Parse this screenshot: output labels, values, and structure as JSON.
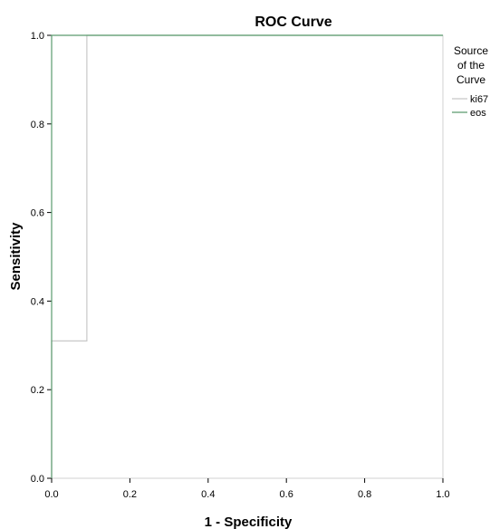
{
  "chart_data": {
    "type": "line",
    "title": "ROC Curve",
    "xlabel": "1 - Specificity",
    "ylabel": "Sensitivity",
    "xlim": [
      0,
      1
    ],
    "ylim": [
      0,
      1
    ],
    "xticks": [
      "0.0",
      "0.2",
      "0.4",
      "0.6",
      "0.8",
      "1.0"
    ],
    "yticks": [
      "0.0",
      "0.2",
      "0.4",
      "0.6",
      "0.8",
      "1.0"
    ],
    "grid": false,
    "legend": {
      "title_lines": [
        "Source",
        "of the",
        "Curve"
      ],
      "placement": "top-right"
    },
    "series": [
      {
        "name": "ki67",
        "color": "#c8c8c8",
        "x": [
          0,
          0,
          0.09,
          0.09,
          1
        ],
        "y": [
          0,
          0.31,
          0.31,
          1,
          1
        ]
      },
      {
        "name": "eos",
        "color": "#5a9b6e",
        "x": [
          0,
          0,
          1
        ],
        "y": [
          0,
          1,
          1
        ]
      }
    ]
  }
}
